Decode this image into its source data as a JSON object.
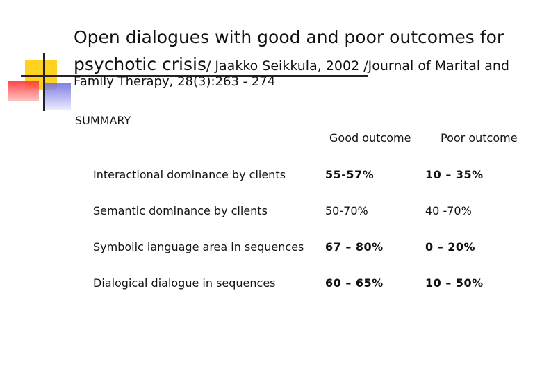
{
  "title": {
    "line1": "Open dialogues with good and poor outcomes for",
    "line2_main": "psychotic crisis",
    "line2_cite": "/ Jaakko Seikkula, 2002 /Journal of Marital and",
    "line3": "Family Therapy, 28(3):263 - 274"
  },
  "summary_label": "SUMMARY",
  "table": {
    "columns": [
      "Good outcome",
      "Poor outcome"
    ],
    "rows": [
      {
        "label": "Interactional dominance by clients",
        "good": "55-57%",
        "poor": "10 – 35%"
      },
      {
        "label": "Semantic dominance by clients",
        "good": "50-70%",
        "poor": "40 -70%"
      },
      {
        "label": "Symbolic language area in sequences",
        "good": "67 – 80%",
        "poor": "0 – 20%"
      },
      {
        "label": "Dialogical dialogue in sequences",
        "good": "60 – 65%",
        "poor": "10 – 50%"
      }
    ]
  },
  "colors": {
    "accent_yellow": "#ffd21f",
    "accent_red": "#ff3030",
    "accent_blue": "#6a6ae0"
  }
}
